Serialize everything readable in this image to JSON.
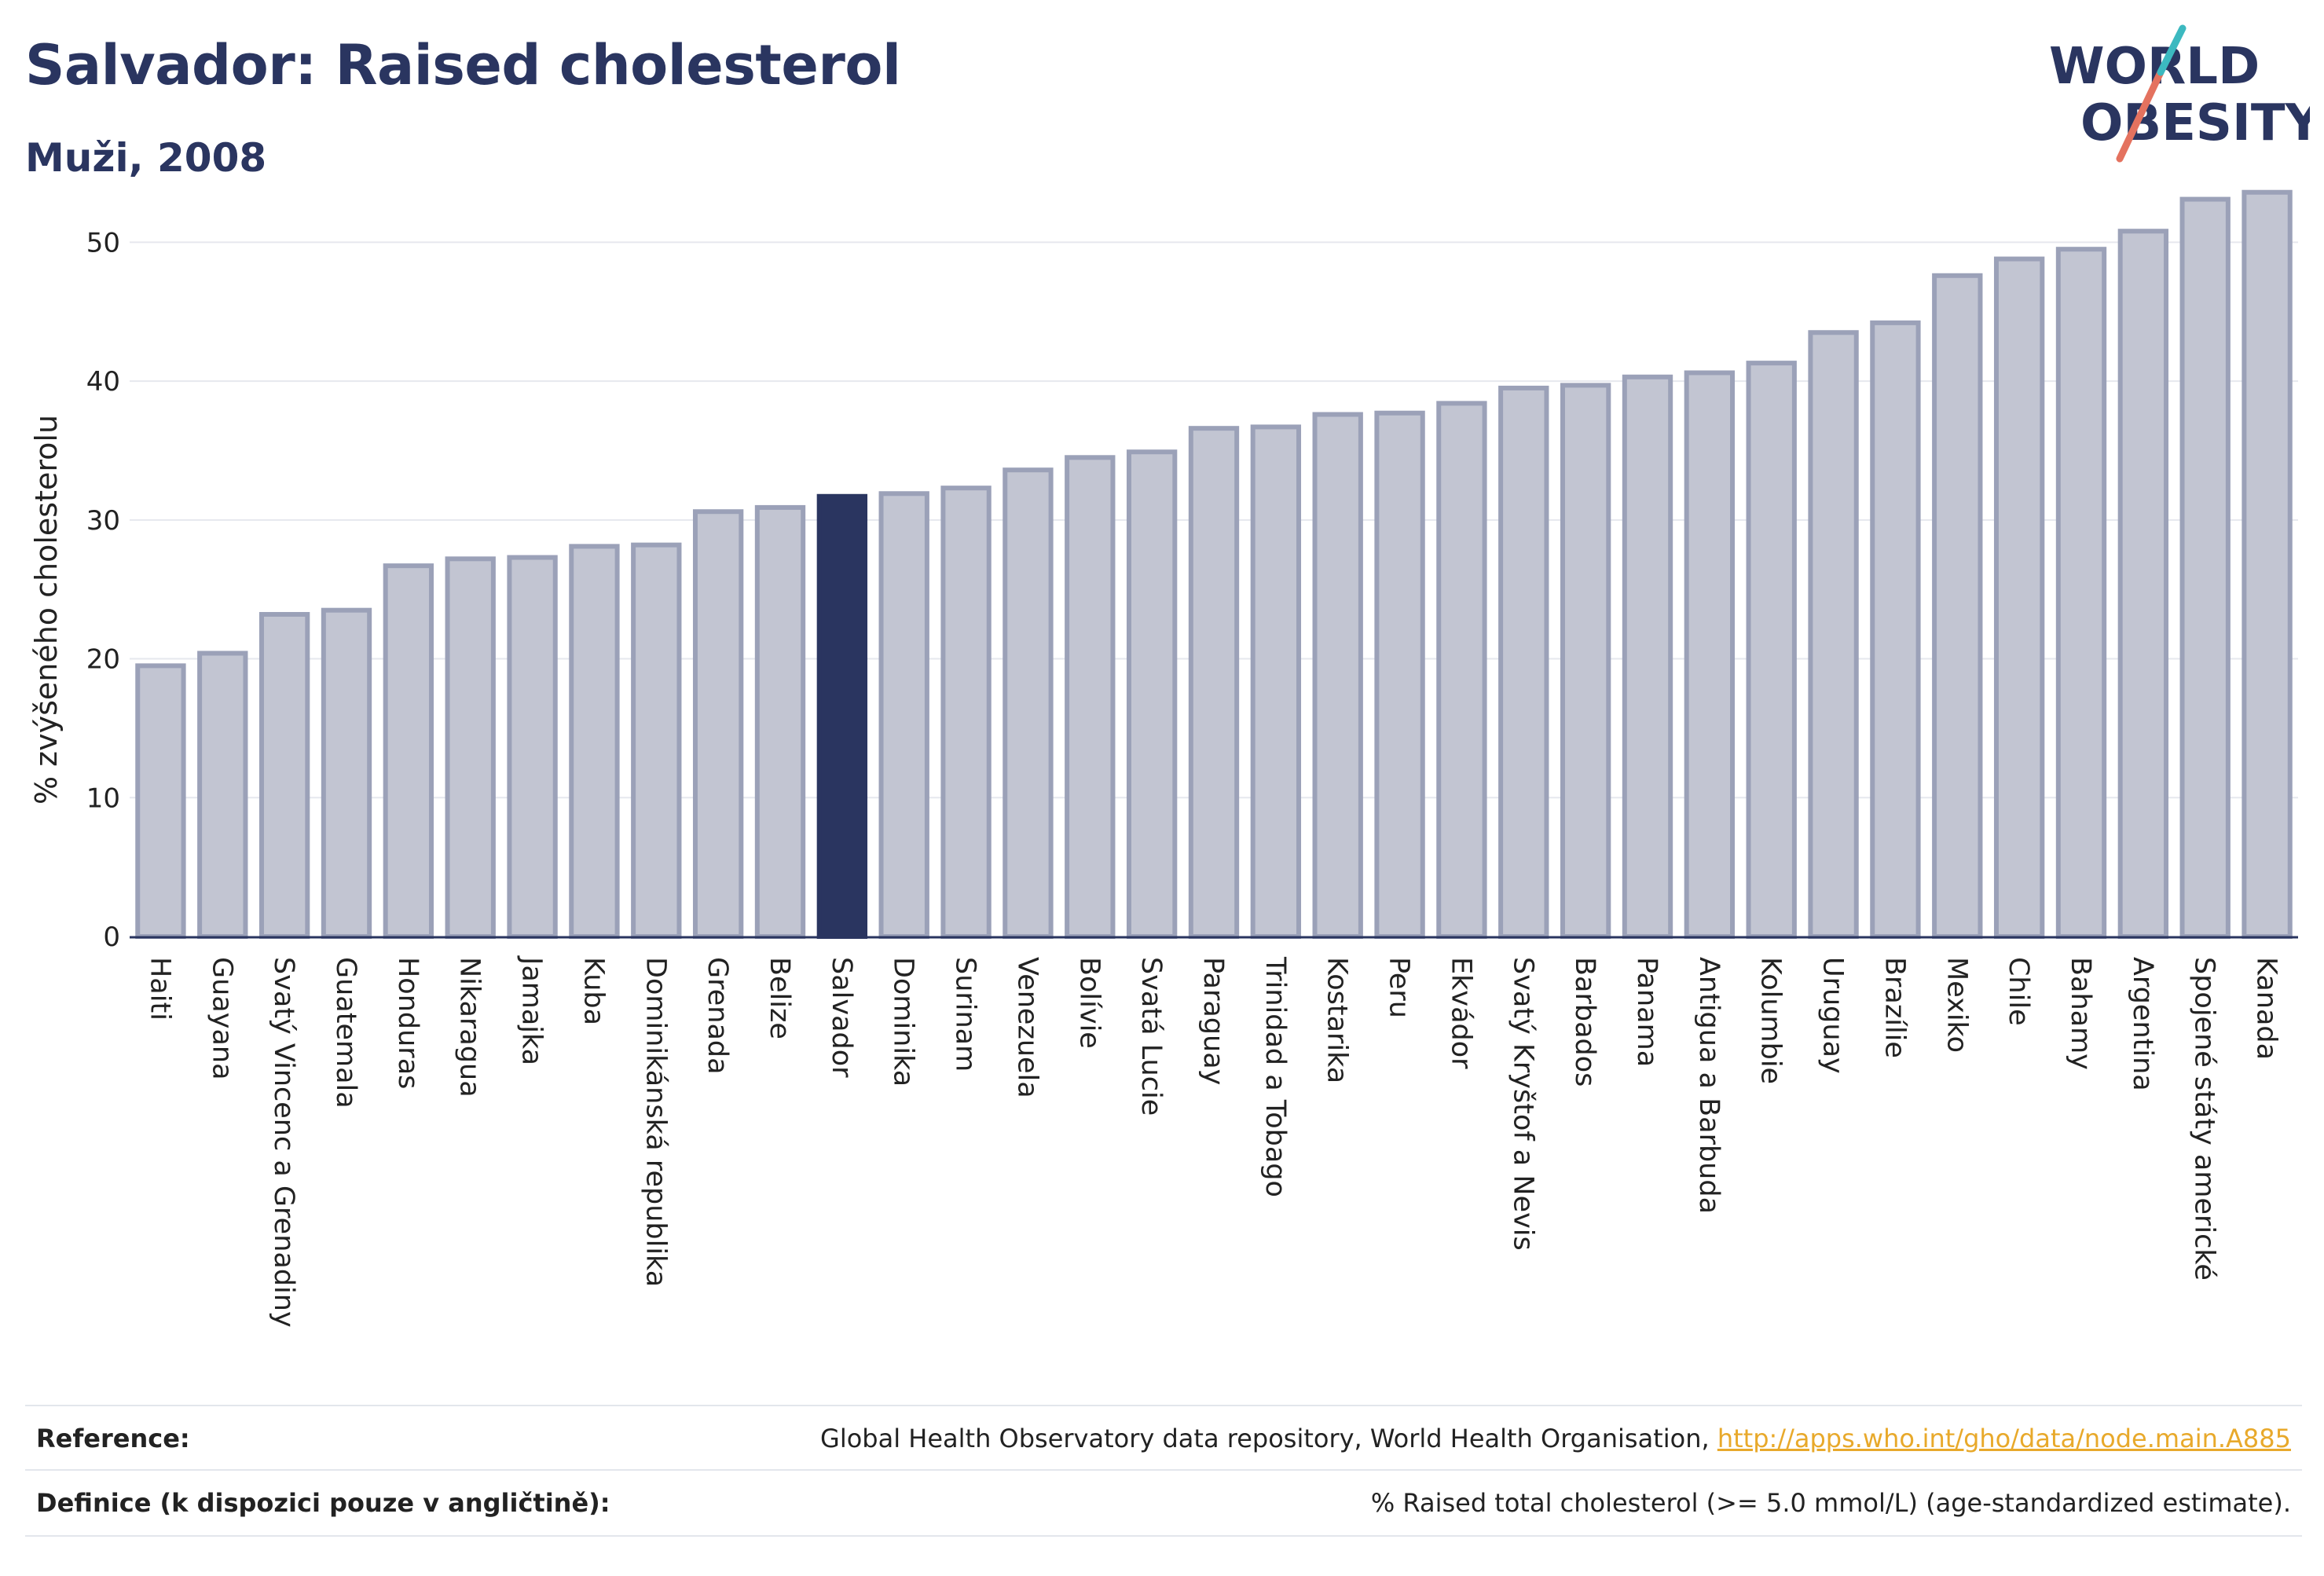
{
  "header": {
    "title": "Salvador: Raised cholesterol",
    "subtitle": "Muži, 2008"
  },
  "logo": {
    "line1": "WORLD",
    "line2": "OBESITY"
  },
  "chart_data": {
    "type": "bar",
    "ylabel": "% zvýšeného cholesterolu",
    "ylim": [
      0,
      55
    ],
    "yticks": [
      0,
      10,
      20,
      30,
      40,
      50
    ],
    "grid": true,
    "highlight": "Salvador",
    "bar_color": "#c2c5d2",
    "bar_edge_color": "#9ba1b8",
    "highlight_color": "#2a3560",
    "categories": [
      "Haiti",
      "Guayana",
      "Svatý Vincenc a Grenadiny",
      "Guatemala",
      "Honduras",
      "Nikaragua",
      "Jamajka",
      "Kuba",
      "Dominikánská republika",
      "Grenada",
      "Belize",
      "Salvador",
      "Dominika",
      "Surinam",
      "Venezuela",
      "Bolívie",
      "Svatá Lucie",
      "Paraguay",
      "Trinidad a Tobago",
      "Kostarika",
      "Peru",
      "Ekvádor",
      "Svatý Kryštof a Nevis",
      "Barbados",
      "Panama",
      "Antigua a Barbuda",
      "Kolumbie",
      "Uruguay",
      "Brazílie",
      "Mexiko",
      "Chile",
      "Bahamy",
      "Argentina",
      "Spojené státy americké",
      "Kanada"
    ],
    "values": [
      19.5,
      20.4,
      23.2,
      23.5,
      26.7,
      27.2,
      27.3,
      28.1,
      28.2,
      30.6,
      30.9,
      31.7,
      31.9,
      32.3,
      33.6,
      34.5,
      34.9,
      36.6,
      36.7,
      37.6,
      37.7,
      38.4,
      39.5,
      39.7,
      40.3,
      40.6,
      41.3,
      43.5,
      44.2,
      47.6,
      48.8,
      49.5,
      50.8,
      53.1,
      53.6
    ]
  },
  "footer": {
    "reference_label": "Reference:",
    "reference_text": "Global Health Observatory data repository, World Health Organisation, ",
    "reference_link": "http://apps.who.int/gho/data/node.main.A885",
    "definition_label": "Definice (k dispozici pouze v angličtině):",
    "definition_text": "% Raised total cholesterol (>= 5.0 mmol/L) (age-standardized estimate)."
  }
}
